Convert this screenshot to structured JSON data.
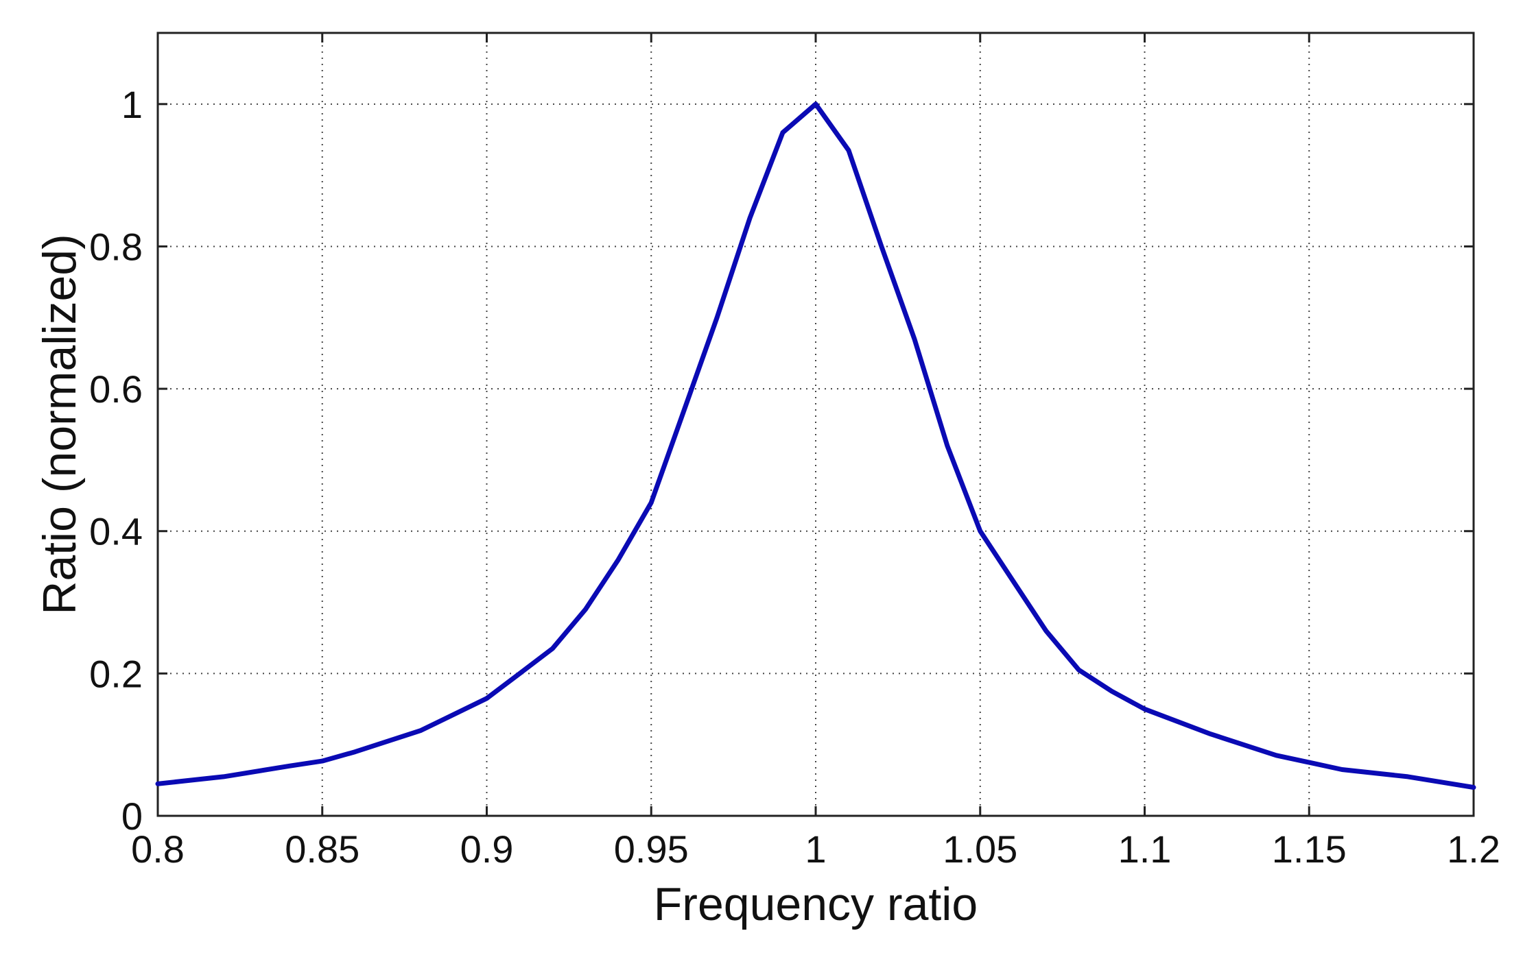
{
  "chart_data": {
    "type": "line",
    "title": "",
    "xlabel": "Frequency ratio",
    "ylabel": "Ratio (normalized)",
    "xlim": [
      0.8,
      1.2
    ],
    "ylim": [
      0,
      1.1
    ],
    "grid": true,
    "legend": "none",
    "x_ticks": [
      0.8,
      0.85,
      0.9,
      0.95,
      1,
      1.05,
      1.1,
      1.15,
      1.2
    ],
    "x_tick_labels": [
      "0.8",
      "0.85",
      "0.9",
      "0.95",
      "1",
      "1.05",
      "1.1",
      "1.15",
      "1.2"
    ],
    "y_ticks": [
      0,
      0.2,
      0.4,
      0.6,
      0.8,
      1
    ],
    "y_tick_labels": [
      "0",
      "0.2",
      "0.4",
      "0.6",
      "0.8",
      "1"
    ],
    "series": [
      {
        "color": "#0a0ab4",
        "x": [
          0.8,
          0.82,
          0.84,
          0.85,
          0.86,
          0.88,
          0.9,
          0.91,
          0.92,
          0.93,
          0.94,
          0.95,
          0.96,
          0.97,
          0.98,
          0.99,
          1.0,
          1.01,
          1.02,
          1.03,
          1.04,
          1.05,
          1.06,
          1.07,
          1.08,
          1.09,
          1.1,
          1.12,
          1.14,
          1.15,
          1.16,
          1.18,
          1.2
        ],
        "y": [
          0.045,
          0.055,
          0.07,
          0.077,
          0.09,
          0.12,
          0.165,
          0.2,
          0.235,
          0.29,
          0.36,
          0.44,
          0.57,
          0.7,
          0.84,
          0.96,
          1.0,
          0.935,
          0.8,
          0.67,
          0.52,
          0.4,
          0.33,
          0.26,
          0.205,
          0.175,
          0.15,
          0.115,
          0.085,
          0.075,
          0.065,
          0.055,
          0.04
        ]
      }
    ]
  }
}
